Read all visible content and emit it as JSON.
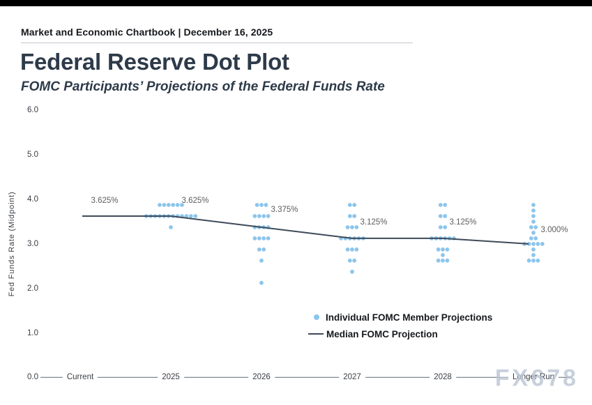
{
  "header": {
    "chartbook": "Market and Economic Chartbook | December 16, 2025"
  },
  "title": "Federal Reserve Dot Plot",
  "subtitle": "FOMC Participants’ Projections of the Federal Funds Rate",
  "watermark": "FX678",
  "legend": {
    "dot_label": "Individual FOMC Member Projections",
    "line_label": "Median FOMC Projection"
  },
  "colors": {
    "dot": "#8cc5ec",
    "median_line": "#3e4a59",
    "axis_line": "#7e8790",
    "title_text": "#2d3a49",
    "label_gray": "#5c5c5c"
  },
  "chart_data": {
    "type": "scatter",
    "title": "Federal Reserve Dot Plot",
    "subtitle": "FOMC Participants’ Projections of the Federal Funds Rate",
    "ylabel": "Fed Funds Rate (Midpoint)",
    "ylim": [
      0.0,
      6.0
    ],
    "yticks": [
      "0.0",
      "1.0",
      "2.0",
      "3.0",
      "4.0",
      "5.0",
      "6.0"
    ],
    "categories": [
      "Current",
      "2025",
      "2026",
      "2027",
      "2028",
      "Longer Run"
    ],
    "grid": false,
    "legend_position": "lower-center-right",
    "median": {
      "name": "Median FOMC Projection",
      "values": [
        3.625,
        3.625,
        3.375,
        3.125,
        3.125,
        3.0
      ],
      "labels": [
        "3.625%",
        "3.625%",
        "3.375%",
        "3.125%",
        "3.125%",
        "3.000%"
      ]
    },
    "projections": {
      "name": "Individual FOMC Member Projections",
      "by_year": [
        {
          "category": "2025",
          "dots": [
            {
              "rate": 3.875,
              "count": 6
            },
            {
              "rate": 3.625,
              "count": 12
            },
            {
              "rate": 3.375,
              "count": 1
            }
          ]
        },
        {
          "category": "2026",
          "dots": [
            {
              "rate": 3.875,
              "count": 3
            },
            {
              "rate": 3.625,
              "count": 4
            },
            {
              "rate": 3.375,
              "count": 4
            },
            {
              "rate": 3.125,
              "count": 4
            },
            {
              "rate": 2.875,
              "count": 2
            },
            {
              "rate": 2.625,
              "count": 1
            },
            {
              "rate": 2.125,
              "count": 1
            }
          ]
        },
        {
          "category": "2027",
          "dots": [
            {
              "rate": 3.875,
              "count": 2
            },
            {
              "rate": 3.625,
              "count": 2
            },
            {
              "rate": 3.375,
              "count": 3
            },
            {
              "rate": 3.125,
              "count": 6
            },
            {
              "rate": 2.875,
              "count": 3
            },
            {
              "rate": 2.625,
              "count": 2
            },
            {
              "rate": 2.375,
              "count": 1
            }
          ]
        },
        {
          "category": "2028",
          "dots": [
            {
              "rate": 3.875,
              "count": 2
            },
            {
              "rate": 3.625,
              "count": 2
            },
            {
              "rate": 3.375,
              "count": 2
            },
            {
              "rate": 3.125,
              "count": 6
            },
            {
              "rate": 2.875,
              "count": 3
            },
            {
              "rate": 2.75,
              "count": 1
            },
            {
              "rate": 2.625,
              "count": 3
            }
          ]
        },
        {
          "category": "Longer Run",
          "dots": [
            {
              "rate": 3.875,
              "count": 1
            },
            {
              "rate": 3.75,
              "count": 1
            },
            {
              "rate": 3.625,
              "count": 1
            },
            {
              "rate": 3.5,
              "count": 1
            },
            {
              "rate": 3.375,
              "count": 2
            },
            {
              "rate": 3.25,
              "count": 1
            },
            {
              "rate": 3.125,
              "count": 2
            },
            {
              "rate": 3.0,
              "count": 5
            },
            {
              "rate": 2.875,
              "count": 1
            },
            {
              "rate": 2.75,
              "count": 1
            },
            {
              "rate": 2.625,
              "count": 3
            }
          ]
        }
      ]
    }
  }
}
